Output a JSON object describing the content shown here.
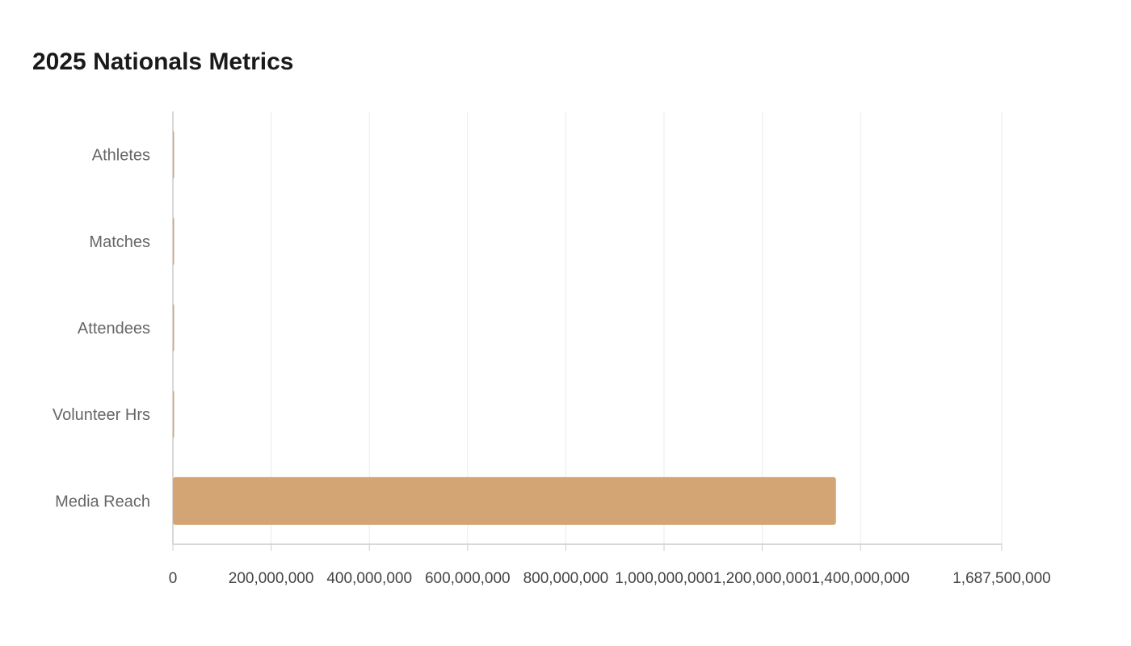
{
  "chart_data": {
    "type": "bar",
    "orientation": "horizontal",
    "title": "2025 Nationals Metrics",
    "xlabel": "",
    "ylabel": "",
    "categories": [
      "Athletes",
      "Matches",
      "Attendees",
      "Volunteer Hrs",
      "Media Reach"
    ],
    "values": [
      1200,
      600,
      18000,
      9000,
      1350000000
    ],
    "xlim": [
      0,
      1687500000
    ],
    "xticks": [
      0,
      200000000,
      400000000,
      600000000,
      800000000,
      1000000000,
      1200000000,
      1400000000,
      1687500000
    ],
    "xtick_labels": [
      "0",
      "200,000,000",
      "400,000,000",
      "600,000,000",
      "800,000,000",
      "1,000,000,000",
      "1,200,000,000",
      "1,400,000,000",
      "1,687,500,000"
    ],
    "grid": true,
    "legend": "none",
    "colors": {
      "bar": "#d4a574",
      "grid": "#ebebeb",
      "axis": "#cccccc",
      "title": "#1a1a1a"
    }
  }
}
